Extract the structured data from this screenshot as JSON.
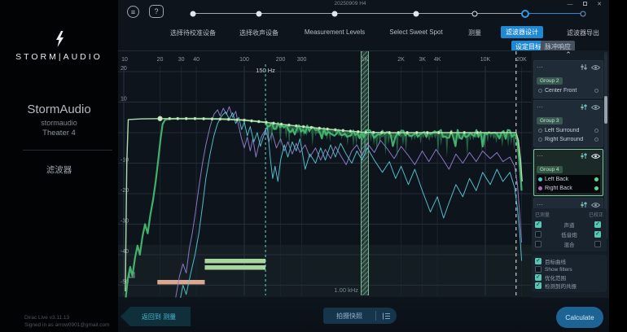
{
  "window": {
    "title": "20250909 H4",
    "minimize": "—",
    "close": "✕"
  },
  "sidebar": {
    "brand": "STORM|AUDIO",
    "device_name": "StormAudio",
    "device_id": "stormaudio",
    "theater": "Theater 4",
    "nav_item": "滤波器",
    "version": "Dirac Live v3.11.13",
    "signed_in": "Signed in as arrow0901@gmail.com"
  },
  "stepper": {
    "steps": [
      {
        "label": "选择待校准设备",
        "state": "done"
      },
      {
        "label": "选择收声设备",
        "state": "done"
      },
      {
        "label": "Measurement Levels",
        "state": "done"
      },
      {
        "label": "Select Sweet Spot",
        "state": "done"
      },
      {
        "label": "测量",
        "state": "open"
      },
      {
        "label": "滤波器设计",
        "state": "current"
      },
      {
        "label": "滤波器导出",
        "state": "upcoming"
      }
    ],
    "sub_tabs": [
      {
        "label": "设定目标",
        "active": true
      },
      {
        "label": "脉冲响应",
        "active": false
      }
    ],
    "menu_glyph": "≡",
    "help_glyph": "?"
  },
  "chart_data": {
    "type": "line",
    "x_axis": {
      "scale": "log",
      "unit": "Hz",
      "range": [
        10,
        24000
      ],
      "ticks": [
        {
          "v": 10,
          "t": "10"
        },
        {
          "v": 20,
          "t": "20"
        },
        {
          "v": 30,
          "t": "30"
        },
        {
          "v": 40,
          "t": "40"
        },
        {
          "v": 100,
          "t": "100"
        },
        {
          "v": 200,
          "t": "200"
        },
        {
          "v": 300,
          "t": "300"
        },
        {
          "v": 1000,
          "t": "1K"
        },
        {
          "v": 2000,
          "t": "2K"
        },
        {
          "v": 3000,
          "t": "3K"
        },
        {
          "v": 4000,
          "t": "4K"
        },
        {
          "v": 10000,
          "t": "10K"
        },
        {
          "v": 20000,
          "t": "20K"
        }
      ]
    },
    "y_axis": {
      "unit": "dB",
      "range": [
        23,
        -54
      ],
      "grid": [
        20,
        10,
        0,
        -10,
        -20,
        -30,
        -40,
        -50
      ],
      "labels": [
        20,
        10,
        -10,
        -20,
        -30,
        -40,
        -50
      ]
    },
    "markers": {
      "crossover": {
        "freq": 150,
        "label": "150 Hz",
        "color": "#6fd4c4"
      },
      "cursor_band": {
        "freq": 1000,
        "label": "1.00 kHz",
        "color": "#7fc9a0"
      },
      "upper_limit": {
        "freq": 18000,
        "color": "#e8edf2"
      }
    },
    "bars": [
      {
        "name": "filter-range-bar-1",
        "from_hz": 47,
        "to_hz": 150,
        "row": 0,
        "color": "#a7d79f"
      },
      {
        "name": "filter-range-bar-2",
        "from_hz": 47,
        "to_hz": 150,
        "row": 1,
        "color": "#a7d79f"
      },
      {
        "name": "subwoofer-range-bar",
        "from_hz": 19,
        "to_hz": 47,
        "row": 2,
        "color": "#d9a88f"
      }
    ],
    "series": [
      {
        "name": "target-curve",
        "color": "#b4dcab",
        "points": [
          [
            10.3,
            -52
          ],
          [
            10.6,
            -10
          ],
          [
            10.9,
            4.3
          ],
          [
            14,
            4.5
          ],
          [
            20,
            4.6
          ],
          [
            40,
            4.6
          ],
          [
            70,
            4.4
          ],
          [
            100,
            4.1
          ],
          [
            150,
            3.4
          ],
          [
            220,
            2.6
          ],
          [
            320,
            1.9
          ],
          [
            480,
            1.2
          ],
          [
            700,
            0.6
          ],
          [
            1000,
            0.1
          ],
          [
            1500,
            0
          ],
          [
            3000,
            0
          ],
          [
            8000,
            0
          ],
          [
            15000,
            0
          ],
          [
            18000,
            0
          ],
          [
            18800,
            -2.5
          ],
          [
            19600,
            -9
          ],
          [
            20200,
            -16
          ]
        ],
        "dot_freqs": [
          20,
          24,
          28,
          33,
          39,
          46,
          54,
          63,
          74,
          87,
          100,
          115,
          132,
          152,
          175,
          203,
          235,
          270,
          310,
          360,
          420,
          490,
          570,
          660,
          760,
          880,
          1020,
          1180,
          1380,
          1600,
          1900,
          2250,
          2700,
          3300,
          4100,
          5200,
          6700,
          8600
        ]
      },
      {
        "name": "corrected-response",
        "color": "#46b871",
        "head": [
          [
            10.4,
            -54
          ],
          [
            10.8,
            -48
          ],
          [
            11.3,
            -44
          ],
          [
            11.8,
            -47
          ],
          [
            12.4,
            -41
          ],
          [
            13,
            -37
          ],
          [
            13.6,
            -40
          ],
          [
            14.3,
            -34
          ],
          [
            15,
            -30
          ],
          [
            15.8,
            -33
          ],
          [
            16.6,
            -27
          ],
          [
            17.5,
            -22
          ],
          [
            18.4,
            -16
          ],
          [
            19.3,
            -9
          ],
          [
            20.2,
            -2
          ],
          [
            21,
            2.8
          ],
          [
            22,
            4.2
          ],
          [
            24,
            4.5
          ],
          [
            28,
            4.6
          ],
          [
            35,
            4.6
          ],
          [
            45,
            4.6
          ],
          [
            60,
            4.5
          ],
          [
            80,
            4.3
          ],
          [
            100,
            4.1
          ],
          [
            120,
            3.8
          ],
          [
            150,
            3.4
          ]
        ],
        "procedural": {
          "from": 150,
          "to": 18000,
          "offset": -0.6,
          "noise_db": 1.5,
          "seed": 11
        },
        "tail": [
          [
            18300,
            -2
          ],
          [
            18900,
            -7
          ],
          [
            19500,
            -13
          ],
          [
            20000,
            -19
          ]
        ]
      },
      {
        "name": "correction-fill",
        "color": "#3ba96b",
        "opacity": 0.5,
        "spikes": {
          "from": 155,
          "to": 17800,
          "seed": 5,
          "min_db": 1.5,
          "max_db": 9
        }
      },
      {
        "name": "left-back-measured",
        "color": "#8f7ccb",
        "points": [
          [
            27,
            -54
          ],
          [
            29,
            -47
          ],
          [
            31,
            -43
          ],
          [
            33,
            -46
          ],
          [
            35,
            -38
          ],
          [
            37,
            -33
          ],
          [
            39,
            -27
          ],
          [
            42,
            -18
          ],
          [
            45,
            -10
          ],
          [
            48,
            -4
          ],
          [
            52,
            2
          ],
          [
            56,
            6
          ],
          [
            60,
            7.5
          ],
          [
            63,
            5.5
          ],
          [
            67,
            8
          ],
          [
            71,
            6
          ],
          [
            75,
            8.5
          ],
          [
            80,
            5
          ],
          [
            85,
            7
          ],
          [
            90,
            2
          ],
          [
            95,
            -2
          ],
          [
            100,
            -5
          ],
          [
            106,
            -1.5
          ],
          [
            112,
            -6
          ],
          [
            118,
            -2
          ],
          [
            125,
            -8
          ],
          [
            132,
            -4
          ],
          [
            140,
            -1
          ],
          [
            150,
            1
          ],
          [
            160,
            -3
          ],
          [
            170,
            0
          ],
          [
            185,
            -5
          ],
          [
            200,
            -2
          ],
          [
            215,
            -6
          ],
          [
            230,
            -3
          ],
          [
            250,
            -7
          ],
          [
            270,
            -3.5
          ],
          [
            290,
            -6.5
          ],
          [
            320,
            -4
          ],
          [
            350,
            -8
          ],
          [
            390,
            -5
          ],
          [
            430,
            -9
          ],
          [
            470,
            -5.5
          ],
          [
            520,
            -8.5
          ],
          [
            570,
            -4.5
          ],
          [
            630,
            -7.5
          ],
          [
            700,
            -10.5
          ],
          [
            780,
            -6
          ],
          [
            860,
            -4
          ],
          [
            950,
            -7.5
          ],
          [
            1050,
            -3.5
          ],
          [
            1200,
            -6.5
          ],
          [
            1350,
            -2.5
          ],
          [
            1550,
            -5.5
          ],
          [
            1750,
            -8.5
          ],
          [
            2000,
            -4.5
          ],
          [
            2300,
            -7.5
          ],
          [
            2600,
            -10.5
          ],
          [
            3000,
            -6
          ],
          [
            3400,
            -9.5
          ],
          [
            3900,
            -5.5
          ],
          [
            4400,
            -8.5
          ],
          [
            5000,
            -12
          ],
          [
            5700,
            -7
          ],
          [
            6500,
            -10
          ],
          [
            7400,
            -6.5
          ],
          [
            8400,
            -9.5
          ],
          [
            9500,
            -6
          ],
          [
            11000,
            -8.5
          ],
          [
            12500,
            -6.5
          ],
          [
            14000,
            -9.5
          ],
          [
            16000,
            -8
          ],
          [
            17500,
            -11
          ],
          [
            18500,
            -17
          ],
          [
            19300,
            -27
          ],
          [
            20000,
            -36
          ]
        ]
      },
      {
        "name": "right-back-measured",
        "color": "#54c4d0",
        "points": [
          [
            29,
            -56
          ],
          [
            31,
            -50
          ],
          [
            33,
            -53
          ],
          [
            36,
            -46
          ],
          [
            39,
            -40
          ],
          [
            42,
            -33
          ],
          [
            45,
            -24
          ],
          [
            48,
            -15
          ],
          [
            52,
            -7
          ],
          [
            56,
            -1
          ],
          [
            60,
            3
          ],
          [
            65,
            5.5
          ],
          [
            70,
            6.8
          ],
          [
            75,
            4.5
          ],
          [
            80,
            6.5
          ],
          [
            85,
            3
          ],
          [
            90,
            5
          ],
          [
            95,
            1
          ],
          [
            100,
            3.5
          ],
          [
            106,
            -1
          ],
          [
            112,
            2
          ],
          [
            120,
            -3
          ],
          [
            128,
            0
          ],
          [
            136,
            -4.5
          ],
          [
            145,
            -1
          ],
          [
            155,
            2
          ],
          [
            165,
            -9
          ],
          [
            172,
            -15
          ],
          [
            180,
            -11
          ],
          [
            190,
            -16
          ],
          [
            200,
            -9
          ],
          [
            215,
            -4
          ],
          [
            230,
            -8
          ],
          [
            250,
            -3
          ],
          [
            270,
            -6
          ],
          [
            290,
            -2
          ],
          [
            320,
            -12
          ],
          [
            350,
            -7
          ],
          [
            390,
            -10
          ],
          [
            430,
            -5
          ],
          [
            470,
            -9
          ],
          [
            520,
            -4
          ],
          [
            570,
            -8
          ],
          [
            630,
            -3.5
          ],
          [
            700,
            -7
          ],
          [
            780,
            -10
          ],
          [
            860,
            -6
          ],
          [
            950,
            -9
          ],
          [
            1050,
            -5
          ],
          [
            1200,
            -9
          ],
          [
            1400,
            -13
          ],
          [
            1600,
            -9.5
          ],
          [
            1800,
            -15
          ],
          [
            2000,
            -11
          ],
          [
            2300,
            -17
          ],
          [
            2600,
            -12
          ],
          [
            3000,
            -19
          ],
          [
            3500,
            -26
          ],
          [
            4000,
            -21
          ],
          [
            4500,
            -28
          ],
          [
            5000,
            -23
          ],
          [
            5700,
            -17
          ],
          [
            6500,
            -21
          ],
          [
            7400,
            -15
          ],
          [
            8400,
            -19
          ],
          [
            9500,
            -13
          ],
          [
            11000,
            -17
          ],
          [
            12500,
            -12
          ],
          [
            14000,
            -16
          ],
          [
            16000,
            -13
          ],
          [
            17500,
            -18
          ],
          [
            18500,
            -25
          ],
          [
            19300,
            -33
          ],
          [
            20000,
            -42
          ]
        ]
      }
    ]
  },
  "speaker_groups": {
    "items": [
      {
        "name": "Group 2",
        "chip": "green",
        "selected": false,
        "channels": [
          {
            "label": "Center Front",
            "left_dot": null,
            "right_dot": null
          }
        ]
      },
      {
        "name": "Group 3",
        "chip": "green",
        "selected": false,
        "channels": [
          {
            "label": "Left Surround",
            "left_dot": null,
            "right_dot": null
          },
          {
            "label": "Right Surround",
            "left_dot": null,
            "right_dot": null
          }
        ]
      },
      {
        "name": "Group 4",
        "chip": "green",
        "selected": true,
        "channels": [
          {
            "label": "Left Back",
            "left_dot": "#4fc7d2",
            "right_dot": "#5ad68f"
          },
          {
            "label": "Right Back",
            "left_dot": "#b763c9",
            "right_dot": "#5ad68f"
          }
        ]
      },
      {
        "name": "Group 5",
        "chip": "blue",
        "selected": false,
        "channels": []
      }
    ]
  },
  "display_options": {
    "columns": {
      "measured": "已测量",
      "corrected": "已校正"
    },
    "rows": [
      {
        "label": "声道",
        "measured": true,
        "corrected": true
      },
      {
        "label": "低音炮",
        "measured": false,
        "corrected": true
      },
      {
        "label": "混合",
        "measured": false,
        "corrected": false
      }
    ],
    "toggles": [
      {
        "label": "目标曲线",
        "checked": true
      },
      {
        "label": "Show filters",
        "checked": false
      },
      {
        "label": "优化范围",
        "checked": true
      },
      {
        "label": "检测到的共振",
        "checked": true
      }
    ]
  },
  "footer": {
    "back": "返回到 测量",
    "snapshot": "拍摄快照",
    "calculate": "Calculate"
  },
  "colors": {
    "accent_blue": "#1e88d2",
    "teal": "#57c7b4",
    "target_green": "#b4dcab",
    "corrected_green": "#46b871",
    "purple": "#8f7ccb",
    "cyan": "#54c4d0",
    "salmon": "#d9a88f"
  }
}
